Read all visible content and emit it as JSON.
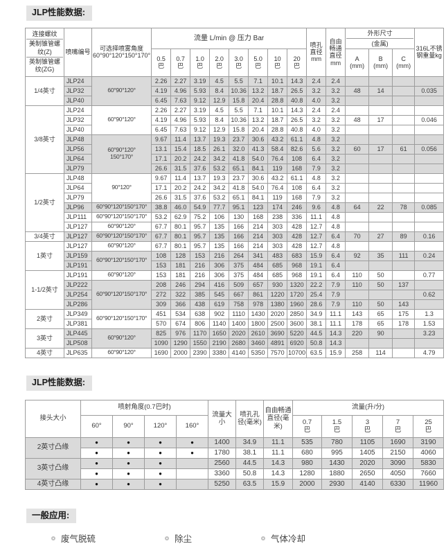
{
  "page": {
    "section1_title": "JLP性能数据:",
    "section2_title": "JLP性能数据:",
    "apps_title": "一般应用:",
    "applications": [
      "废气脱硫",
      "除尘",
      "气体冷却"
    ],
    "colors": {
      "shade": "#dadada",
      "title_bg": "#e3e3e3",
      "border": "#9c9c9c",
      "dot": "#111111"
    }
  },
  "table1": {
    "headers": {
      "conn1": "连接螺纹",
      "conn2": "美制锥管螺纹(Z)",
      "conn3": "英制锥管螺纹(ZG)",
      "nozzle": "喷嘴编号",
      "angle_title": "可选择喷雾角度",
      "angle_range": "60°90°120°150°170°",
      "flow_title": "流量 L/min @ 压力 Bar",
      "pressures": [
        "0.5",
        "0.7",
        "1.0",
        "2.0",
        "3.0",
        "5.0",
        "10",
        "20"
      ],
      "bar_unit": "巴",
      "orifice": "喷孔直径mm",
      "free_passage": "自由畅通直径mm",
      "dims_title": "外形尺寸",
      "dims_sub": "(金属)",
      "dim_a": "A(mm)",
      "dim_b": "B(mm)",
      "dim_c": "C(mm)",
      "weight": "316L不锈钢重量kg"
    },
    "rows": [
      {
        "size": "1/4英寸",
        "sspan": 3,
        "model": "JLP24",
        "angle": [
          "60°90°120°"
        ],
        "aspan": 3,
        "f": [
          "2.26",
          "2.27",
          "3.19",
          "4.5",
          "5.5",
          "7.1",
          "10.1",
          "14.3"
        ],
        "d": "2.4",
        "fp": "2.4",
        "A": "",
        "B": "",
        "C": "",
        "w": "",
        "shade": 1
      },
      {
        "model": "JLP32",
        "f": [
          "4.19",
          "4.96",
          "5.93",
          "8.4",
          "10.36",
          "13.2",
          "18.7",
          "26.5"
        ],
        "d": "3.2",
        "fp": "3.2",
        "A": "48",
        "B": "14",
        "C": "",
        "w": "0.035",
        "shade": 1
      },
      {
        "model": "JLP40",
        "f": [
          "6.45",
          "7.63",
          "9.12",
          "12.9",
          "15.8",
          "20.4",
          "28.8",
          "40.8"
        ],
        "d": "4.0",
        "fp": "3.2",
        "A": "",
        "B": "",
        "C": "",
        "w": "",
        "shade": 1
      },
      {
        "size": "3/8英寸",
        "sspan": 7,
        "model": "JLP24",
        "angle": [
          "60°90°120°"
        ],
        "aspan": 3,
        "f": [
          "2.26",
          "2.27",
          "3.19",
          "4.5",
          "5.5",
          "7.1",
          "10.1",
          "14.3"
        ],
        "d": "2.4",
        "fp": "2.4",
        "A": "",
        "B": "",
        "C": "",
        "w": "",
        "shade": 0
      },
      {
        "model": "JLP32",
        "f": [
          "4.19",
          "4.96",
          "5.93",
          "8.4",
          "10.36",
          "13.2",
          "18.7",
          "26.5"
        ],
        "d": "3.2",
        "fp": "3.2",
        "A": "48",
        "B": "17",
        "C": "",
        "w": "0.046",
        "shade": 0
      },
      {
        "model": "JLP40",
        "f": [
          "6.45",
          "7.63",
          "9.12",
          "12.9",
          "15.8",
          "20.4",
          "28.8",
          "40.8"
        ],
        "d": "4.0",
        "fp": "3.2",
        "A": "",
        "B": "",
        "C": "",
        "w": "",
        "shade": 0
      },
      {
        "model": "JLP48",
        "angle": [
          "60°90°120°",
          "150°170°"
        ],
        "aspan": 4,
        "f": [
          "9.67",
          "11.4",
          "13.7",
          "19.3",
          "23.7",
          "30.6",
          "43.2",
          "61.1"
        ],
        "d": "4.8",
        "fp": "3.2",
        "A": "",
        "B": "",
        "C": "",
        "w": "",
        "shade": 1
      },
      {
        "model": "JLP56",
        "f": [
          "13.1",
          "15.4",
          "18.5",
          "26.1",
          "32.0",
          "41.3",
          "58.4",
          "82.6"
        ],
        "d": "5.6",
        "fp": "3.2",
        "A": "60",
        "B": "17",
        "C": "61",
        "w": "0.056",
        "shade": 1
      },
      {
        "model": "JLP64",
        "f": [
          "17.1",
          "20.2",
          "24.2",
          "34.2",
          "41.8",
          "54.0",
          "76.4",
          "108"
        ],
        "d": "6.4",
        "fp": "3.2",
        "A": "",
        "B": "",
        "C": "",
        "w": "",
        "shade": 1
      },
      {
        "model": "JLP79",
        "f": [
          "26.6",
          "31.5",
          "37.6",
          "53.2",
          "65.1",
          "84.1",
          "119",
          "168"
        ],
        "d": "7.9",
        "fp": "3.2",
        "A": "",
        "B": "",
        "C": "",
        "w": "",
        "shade": 1
      },
      {
        "size": "1/2英寸",
        "sspan": 6,
        "model": "JLP48",
        "angle": [
          "90°120°"
        ],
        "aspan": 3,
        "f": [
          "9.67",
          "11.4",
          "13.7",
          "19.3",
          "23.7",
          "30.6",
          "43.2",
          "61.1"
        ],
        "d": "4.8",
        "fp": "3.2",
        "A": "",
        "B": "",
        "C": "",
        "w": "",
        "shade": 0
      },
      {
        "model": "JLP64",
        "f": [
          "17.1",
          "20.2",
          "24.2",
          "34.2",
          "41.8",
          "54.0",
          "76.4",
          "108"
        ],
        "d": "6.4",
        "fp": "3.2",
        "A": "",
        "B": "",
        "C": "",
        "w": "",
        "shade": 0
      },
      {
        "model": "JLP79",
        "f": [
          "26.6",
          "31.5",
          "37.6",
          "53.2",
          "65.1",
          "84.1",
          "119",
          "168"
        ],
        "d": "7.9",
        "fp": "3.2",
        "A": "",
        "B": "",
        "C": "",
        "w": "",
        "shade": 0
      },
      {
        "model": "JLP96",
        "angle": [
          "60°90°120°150°170°"
        ],
        "aspan": 1,
        "f": [
          "38.8",
          "46.0",
          "54.9",
          "77.7",
          "95.1",
          "123",
          "174",
          "246"
        ],
        "d": "9.6",
        "fp": "4.8",
        "A": "64",
        "B": "22",
        "C": "78",
        "w": "0.085",
        "shade": 1
      },
      {
        "model": "JLP111",
        "angle": [
          "60°90°120°150°170°"
        ],
        "aspan": 1,
        "f": [
          "53.2",
          "62.9",
          "75.2",
          "106",
          "130",
          "168",
          "238",
          "336"
        ],
        "d": "11.1",
        "fp": "4.8",
        "A": "",
        "B": "",
        "C": "",
        "w": "",
        "shade": 0
      },
      {
        "model": "JLP127",
        "angle": [
          "60°90°120°"
        ],
        "aspan": 1,
        "f": [
          "67.7",
          "80.1",
          "95.7",
          "135",
          "166",
          "214",
          "303",
          "428"
        ],
        "d": "12.7",
        "fp": "4.8",
        "A": "",
        "B": "",
        "C": "",
        "w": "",
        "shade": 0
      },
      {
        "size": "3/4英寸",
        "sspan": 1,
        "model": "JLP127",
        "angle": [
          "60°90°120°150°170°"
        ],
        "aspan": 1,
        "f": [
          "67.7",
          "80.1",
          "95.7",
          "135",
          "166",
          "214",
          "303",
          "428"
        ],
        "d": "12.7",
        "fp": "6.4",
        "A": "70",
        "B": "27",
        "C": "89",
        "w": "0.16",
        "shade": 1
      },
      {
        "size": "1英寸",
        "sspan": 3,
        "model": "JLP127",
        "angle": [
          "60°90°120°"
        ],
        "aspan": 1,
        "f": [
          "67.7",
          "80.1",
          "95.7",
          "135",
          "166",
          "214",
          "303",
          "428"
        ],
        "d": "12.7",
        "fp": "4.8",
        "A": "",
        "B": "",
        "C": "",
        "w": "",
        "shade": 0
      },
      {
        "model": "JLP159",
        "angle": [
          "60°90°120°150°170°"
        ],
        "aspan": 2,
        "f": [
          "108",
          "128",
          "153",
          "216",
          "264",
          "341",
          "483",
          "683"
        ],
        "d": "15.9",
        "fp": "6.4",
        "A": "92",
        "B": "35",
        "C": "111",
        "w": "0.24",
        "shade": 1
      },
      {
        "model": "JLP191",
        "f": [
          "153",
          "181",
          "216",
          "306",
          "375",
          "484",
          "685",
          "968"
        ],
        "d": "19.1",
        "fp": "6.4",
        "A": "",
        "B": "",
        "C": "",
        "w": "",
        "shade": 1
      },
      {
        "size": "1-1/2英寸",
        "sspan": 4,
        "model": "JLP191",
        "angle": [
          "60°90°120°"
        ],
        "aspan": 1,
        "f": [
          "153",
          "181",
          "216",
          "306",
          "375",
          "484",
          "685",
          "968"
        ],
        "d": "19.1",
        "fp": "6.4",
        "A": "110",
        "B": "50",
        "C": "",
        "w": "0.77",
        "shade": 0
      },
      {
        "model": "JLP222",
        "angle": [
          "60°90°120°150°170°"
        ],
        "aspan": 3,
        "f": [
          "208",
          "246",
          "294",
          "416",
          "509",
          "657",
          "930",
          "1320"
        ],
        "d": "22.2",
        "fp": "7.9",
        "A": "110",
        "B": "50",
        "C": "137",
        "w": "",
        "shade": 1
      },
      {
        "model": "JLP254",
        "f": [
          "272",
          "322",
          "385",
          "545",
          "667",
          "861",
          "1220",
          "1720"
        ],
        "d": "25.4",
        "fp": "7.9",
        "A": "",
        "B": "",
        "C": "",
        "w": "0.62",
        "shade": 1
      },
      {
        "model": "JLP286",
        "f": [
          "309",
          "366",
          "438",
          "619",
          "758",
          "978",
          "1380",
          "1960"
        ],
        "d": "28.6",
        "fp": "7.9",
        "A": "110",
        "B": "50",
        "C": "143",
        "w": "",
        "shade": 1
      },
      {
        "size": "2英寸",
        "sspan": 2,
        "model": "JLP349",
        "angle": [
          "60°90°120°150°170°"
        ],
        "aspan": 2,
        "f": [
          "451",
          "534",
          "638",
          "902",
          "1110",
          "1430",
          "2020",
          "2850"
        ],
        "d": "34.9",
        "fp": "11.1",
        "A": "143",
        "B": "65",
        "C": "175",
        "w": "1.3",
        "shade": 0
      },
      {
        "model": "JLP381",
        "f": [
          "570",
          "674",
          "806",
          "1140",
          "1400",
          "1800",
          "2500",
          "3600"
        ],
        "d": "38.1",
        "fp": "11.1",
        "A": "178",
        "B": "65",
        "C": "178",
        "w": "1.53",
        "shade": 0
      },
      {
        "size": "3英寸",
        "sspan": 2,
        "model": "JLP445",
        "angle": [
          "60°90°120°"
        ],
        "aspan": 2,
        "f": [
          "825",
          "976",
          "1170",
          "1650",
          "2020",
          "2610",
          "3690",
          "5220"
        ],
        "d": "44.5",
        "fp": "14.3",
        "A": "220",
        "B": "90",
        "C": "",
        "w": "3.23",
        "shade": 1
      },
      {
        "model": "JLP508",
        "f": [
          "1090",
          "1290",
          "1550",
          "2190",
          "2680",
          "3460",
          "4891",
          "6920"
        ],
        "d": "50.8",
        "fp": "14.3",
        "A": "",
        "B": "",
        "C": "",
        "w": "",
        "shade": 1
      },
      {
        "size": "4英寸",
        "sspan": 1,
        "model": "JLP635",
        "angle": [
          "60°90°120°"
        ],
        "aspan": 1,
        "f": [
          "1690",
          "2000",
          "2390",
          "3380",
          "4140",
          "5350",
          "7570",
          "10700"
        ],
        "d": "63.5",
        "fp": "15.9",
        "A": "258",
        "B": "114",
        "C": "",
        "w": "4.79",
        "shade": 0
      }
    ]
  },
  "table2": {
    "headers": {
      "connector": "接头大小",
      "angle_title": "喷射角度(0.7巴时)",
      "angles": [
        "60°",
        "90°",
        "120°",
        "160°"
      ],
      "flow_size": "流量大小",
      "orifice": "喷孔孔径(毫米)",
      "free_passage": "自由畅通直径(毫米)",
      "flow_title": "流量(升/分)",
      "pressures": [
        "0.7",
        "1.5",
        "3",
        "7",
        "25"
      ],
      "bar_unit": "巴"
    },
    "rows": [
      {
        "label": "2英寸凸缘",
        "lspan": 2,
        "dots": [
          1,
          1,
          1,
          1
        ],
        "q": "1400",
        "d": "34.9",
        "fp": "11.1",
        "f": [
          "535",
          "780",
          "1105",
          "1690",
          "3190"
        ],
        "shade": 1
      },
      {
        "dots": [
          1,
          1,
          1,
          1
        ],
        "q": "1780",
        "d": "38.1",
        "fp": "11.1",
        "f": [
          "680",
          "995",
          "1405",
          "2150",
          "4060"
        ],
        "shade": 0
      },
      {
        "label": "3英寸凸缘",
        "lspan": 2,
        "dots": [
          1,
          1,
          1,
          0
        ],
        "q": "2560",
        "d": "44.5",
        "fp": "14.3",
        "f": [
          "980",
          "1430",
          "2020",
          "3090",
          "5830"
        ],
        "shade": 1
      },
      {
        "dots": [
          1,
          1,
          1,
          0
        ],
        "q": "3360",
        "d": "50.8",
        "fp": "14.3",
        "f": [
          "1280",
          "1880",
          "2650",
          "4050",
          "7660"
        ],
        "shade": 0
      },
      {
        "label": "4英寸凸缘",
        "lspan": 1,
        "dots": [
          1,
          1,
          1,
          0
        ],
        "q": "5250",
        "d": "63.5",
        "fp": "15.9",
        "f": [
          "2000",
          "2930",
          "4140",
          "6330",
          "11960"
        ],
        "shade": 1
      }
    ]
  }
}
